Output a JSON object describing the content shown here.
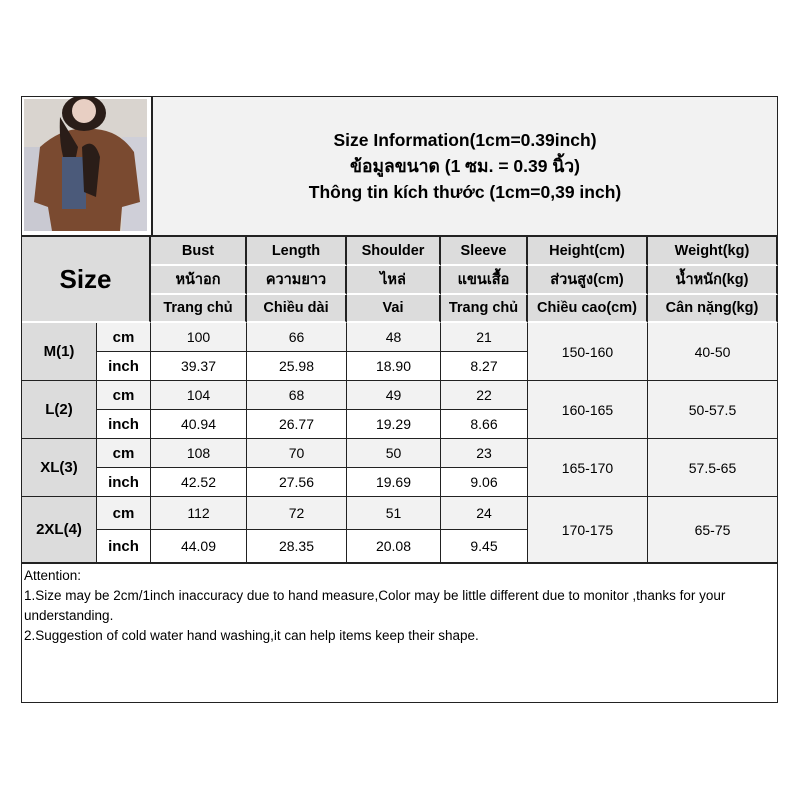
{
  "title": {
    "line1": "Size Information(1cm=0.39inch)",
    "line2": "ข้อมูลขนาด (1 ซม. = 0.39 นิ้ว)",
    "line3": "Thông tin kích thước (1cm=0,39 inch)"
  },
  "size_header": "Size",
  "columns": [
    {
      "en": "Bust",
      "th": "หน้าอก",
      "vi": "Trang chủ"
    },
    {
      "en": "Length",
      "th": "ความยาว",
      "vi": "Chiều dài"
    },
    {
      "en": "Shoulder",
      "th": "ไหล่",
      "vi": "Vai"
    },
    {
      "en": "Sleeve",
      "th": "แขนเสื้อ",
      "vi": "Trang chủ"
    },
    {
      "en": "Height(cm)",
      "th": "ส่วนสูง(cm)",
      "vi": "Chiều cao(cm)"
    },
    {
      "en": "Weight(kg)",
      "th": "น้ำหนัก(kg)",
      "vi": "Cân nặng(kg)"
    }
  ],
  "units": {
    "cm": "cm",
    "inch": "inch"
  },
  "sizes": [
    {
      "name": "M(1)",
      "cm": [
        "100",
        "66",
        "48",
        "21"
      ],
      "inch": [
        "39.37",
        "25.98",
        "18.90",
        "8.27"
      ],
      "height": "150-160",
      "weight": "40-50"
    },
    {
      "name": "L(2)",
      "cm": [
        "104",
        "68",
        "49",
        "22"
      ],
      "inch": [
        "40.94",
        "26.77",
        "19.29",
        "8.66"
      ],
      "height": "160-165",
      "weight": "50-57.5"
    },
    {
      "name": "XL(3)",
      "cm": [
        "108",
        "70",
        "50",
        "23"
      ],
      "inch": [
        "42.52",
        "27.56",
        "19.69",
        "9.06"
      ],
      "height": "165-170",
      "weight": "57.5-65"
    },
    {
      "name": "2XL(4)",
      "cm": [
        "112",
        "72",
        "51",
        "24"
      ],
      "inch": [
        "44.09",
        "28.35",
        "20.08",
        "9.45"
      ],
      "height": "170-175",
      "weight": "65-75"
    }
  ],
  "attention": {
    "heading": "Attention:",
    "notes": [
      "1.Size may be 2cm/1inch inaccuracy due to hand measure,Color may be little different due to monitor ,thanks for your understanding.",
      "2.Suggestion of cold water hand washing,it can help items keep their shape."
    ]
  },
  "colors": {
    "header_bg": "#dcdcdc",
    "title_bg": "#f2f2f2",
    "border": "#222222"
  }
}
